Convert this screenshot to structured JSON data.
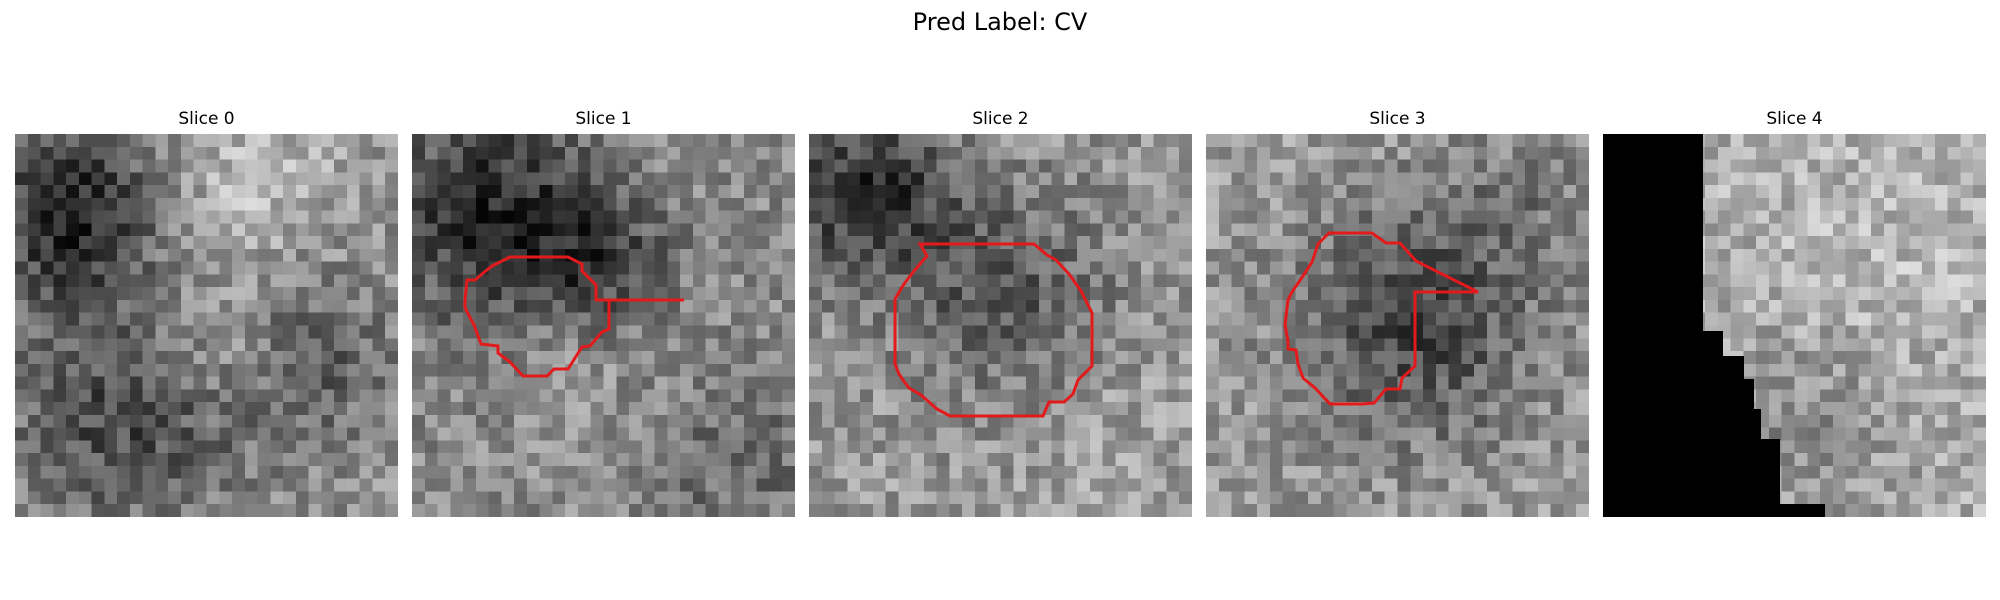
{
  "figure": {
    "title": "Pred Label: CV"
  },
  "slices": [
    {
      "label": "Slice 0",
      "has_contour": false,
      "black_mask": false
    },
    {
      "label": "Slice 1",
      "has_contour": true,
      "black_mask": false
    },
    {
      "label": "Slice 2",
      "has_contour": true,
      "black_mask": false
    },
    {
      "label": "Slice 3",
      "has_contour": true,
      "black_mask": false
    },
    {
      "label": "Slice 4",
      "has_contour": false,
      "black_mask": true
    }
  ],
  "colors": {
    "contour": "#e31a1c",
    "mask": "#000000",
    "background": "#ffffff"
  },
  "colormap": "gray"
}
